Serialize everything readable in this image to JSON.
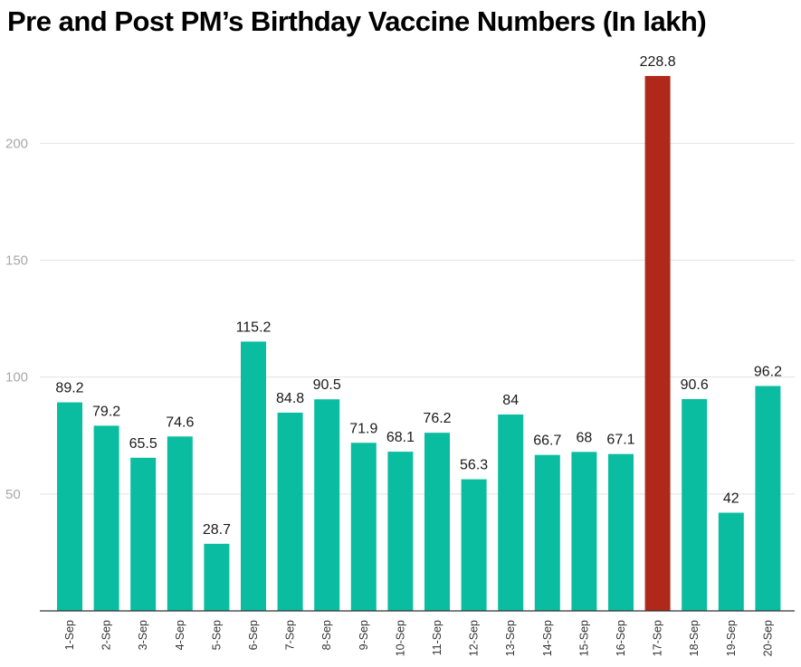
{
  "chart_data": {
    "type": "bar",
    "title": "Pre and Post PM’s Birthday Vaccine Numbers (In lakh)",
    "xlabel": "",
    "ylabel": "",
    "categories": [
      "1-Sep",
      "2-Sep",
      "3-Sep",
      "4-Sep",
      "5-Sep",
      "6-Sep",
      "7-Sep",
      "8-Sep",
      "9-Sep",
      "10-Sep",
      "11-Sep",
      "12-Sep",
      "13-Sep",
      "14-Sep",
      "15-Sep",
      "16-Sep",
      "17-Sep",
      "18-Sep",
      "19-Sep",
      "20-Sep"
    ],
    "values": [
      89.2,
      79.2,
      65.5,
      74.6,
      28.7,
      115.2,
      84.8,
      90.5,
      71.9,
      68.1,
      76.2,
      56.3,
      84,
      66.7,
      68,
      67.1,
      228.8,
      90.6,
      42,
      96.2
    ],
    "data_labels": [
      "89.2",
      "79.2",
      "65.5",
      "74.6",
      "28.7",
      "115.2",
      "84.8",
      "90.5",
      "71.9",
      "68.1",
      "76.2",
      "56.3",
      "84",
      "66.7",
      "68",
      "67.1",
      "228.8",
      "90.6",
      "42",
      "96.2"
    ],
    "highlight_category": "17-Sep",
    "yticks": [
      50,
      100,
      150,
      200
    ],
    "ylim": [
      0,
      240
    ],
    "grid": true,
    "colors": {
      "bar": "#0bbda0",
      "highlight": "#b0281a"
    }
  }
}
